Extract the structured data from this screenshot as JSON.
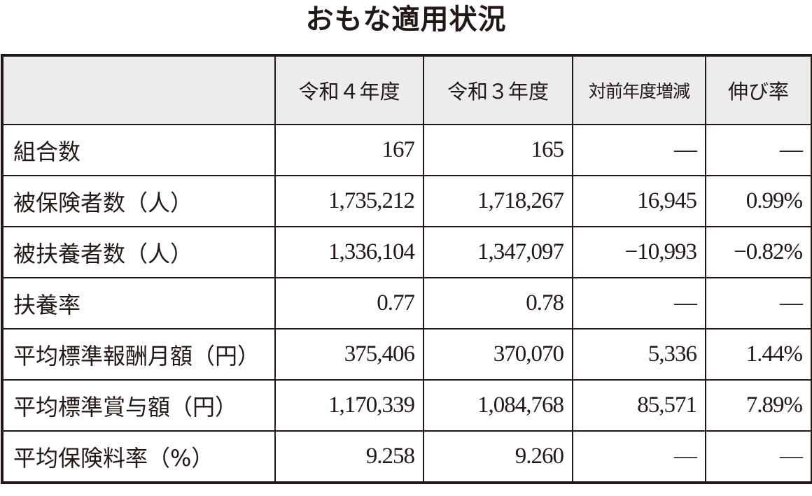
{
  "title": "おもな適用状況",
  "table": {
    "headers": [
      "",
      "令和４年度",
      "令和３年度",
      "対前年度増減",
      "伸び率"
    ],
    "rows": [
      [
        "組合数",
        "167",
        "165",
        "—",
        "—"
      ],
      [
        "被保険者数（人）",
        "1,735,212",
        "1,718,267",
        "16,945",
        "0.99%"
      ],
      [
        "被扶養者数（人）",
        "1,336,104",
        "1,347,097",
        "−10,993",
        "−0.82%"
      ],
      [
        "扶養率",
        "0.77",
        "0.78",
        "—",
        "—"
      ],
      [
        "平均標準報酬月額（円）",
        "375,406",
        "370,070",
        "5,336",
        "1.44%"
      ],
      [
        "平均標準賞与額（円）",
        "1,170,339",
        "1,084,768",
        "85,571",
        "7.89%"
      ],
      [
        "平均保険料率（%）",
        "9.258",
        "9.260",
        "—",
        "—"
      ]
    ]
  }
}
